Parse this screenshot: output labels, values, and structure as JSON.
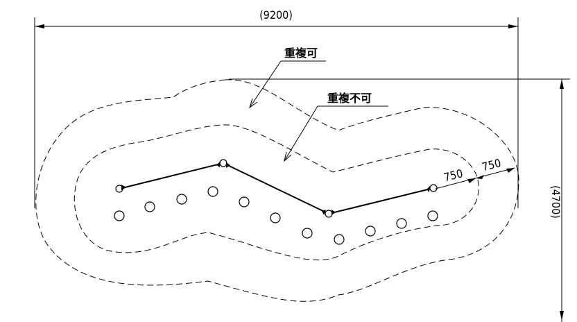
{
  "dimensions": {
    "overall_width": "(9200)",
    "overall_height": "(4700)",
    "offset_inner": "750",
    "offset_outer": "750"
  },
  "labels": {
    "overlap_allowed": "重複可",
    "overlap_not_allowed": "重複不可"
  }
}
